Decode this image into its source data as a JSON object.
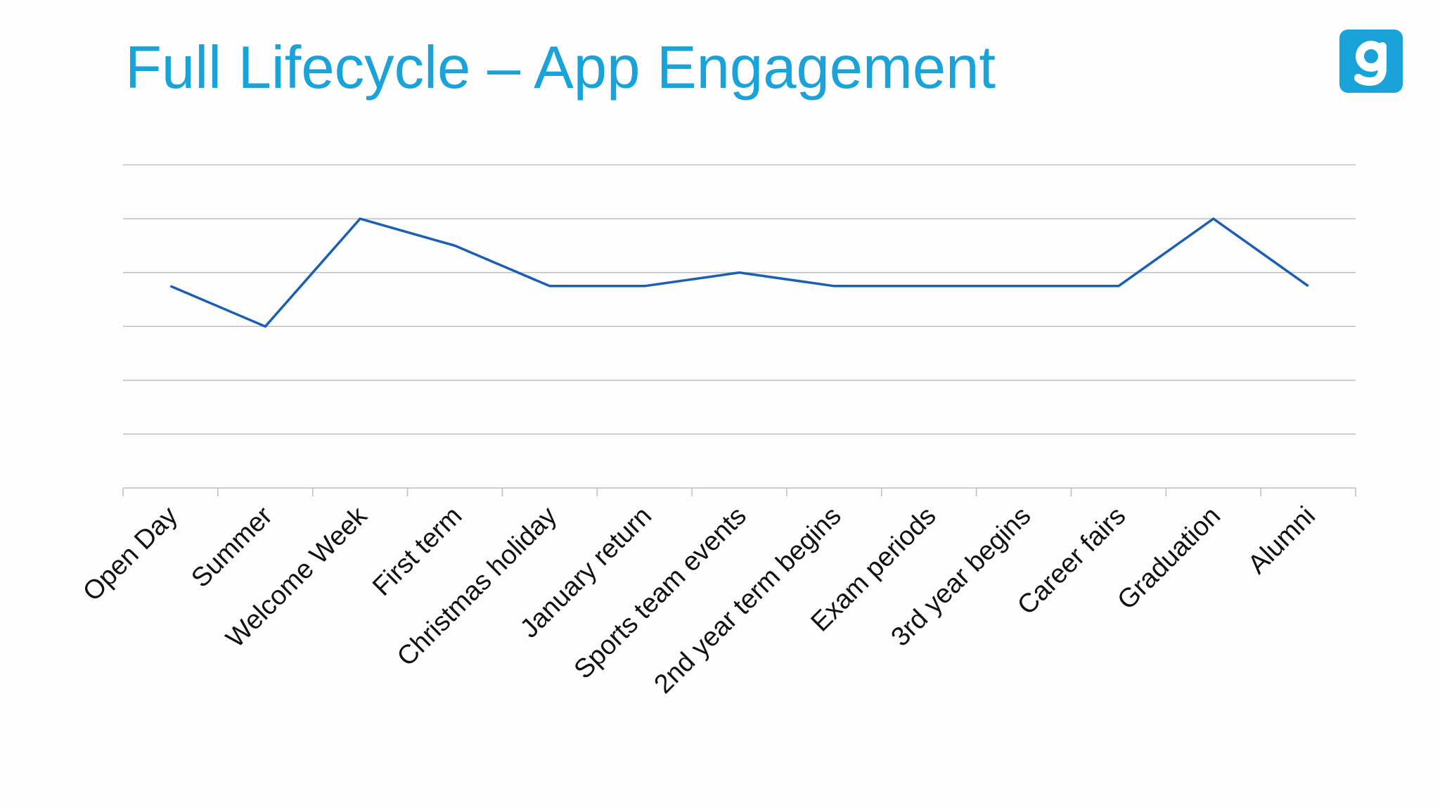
{
  "title": "Full Lifecycle – App Engagement",
  "logo": {
    "icon": "g-logo-icon",
    "color": "#1aa3d9",
    "text": "g"
  },
  "colors": {
    "title": "#1aa3d9",
    "line": "#1a5fb4",
    "grid": "#bfbfbf"
  },
  "chart_data": {
    "type": "line",
    "title": "",
    "xlabel": "",
    "ylabel": "",
    "y_tick_labels_shown": false,
    "grid": "horizontal",
    "legend": "none",
    "ylim": [
      0,
      6
    ],
    "categories": [
      "Open Day",
      "Summer",
      "Welcome Week",
      "First term",
      "Christmas holiday",
      "January return",
      "Sports team events",
      "2nd year term begins",
      "Exam periods",
      "3rd year begins",
      "Career fairs",
      "Graduation",
      "Alumni"
    ],
    "series": [
      {
        "values": [
          3.75,
          3.0,
          5.0,
          4.5,
          3.75,
          3.75,
          4.0,
          3.75,
          3.75,
          3.75,
          3.75,
          5.0,
          3.75
        ]
      }
    ]
  }
}
